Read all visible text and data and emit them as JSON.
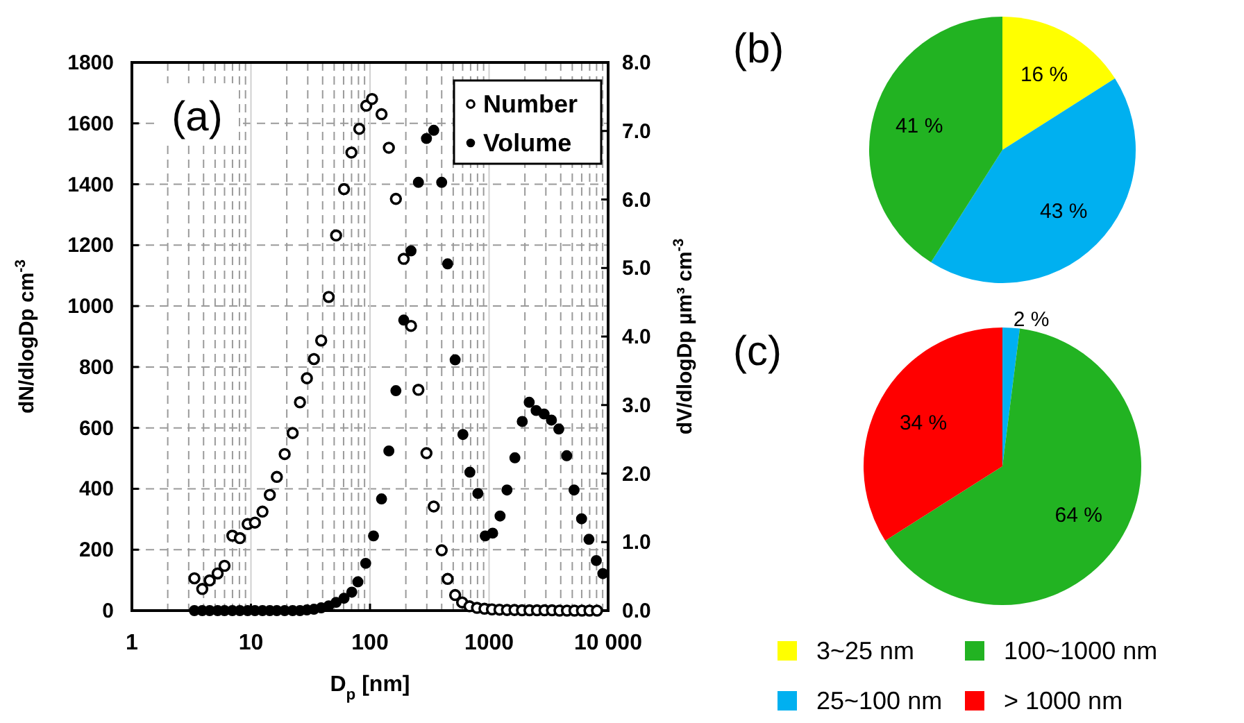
{
  "chart_data": [
    {
      "type": "scatter",
      "title": "(a)",
      "xlabel": "D$_{p}$ [nm]",
      "ylabel": "dN/dlogDp cm$^{-3}$",
      "y2label": "dV/dlogDp µm³ cm$^{-3}$",
      "log": "x",
      "grid": true,
      "legend": "top right",
      "marker": "circle",
      "xlim": [
        1,
        10000
      ],
      "xticks": [
        1,
        {
          "value": 2,
          "label": null
        },
        {
          "value": 3,
          "label": null
        },
        {
          "value": 4,
          "label": null
        },
        {
          "value": 5,
          "label": null
        },
        {
          "value": 6,
          "label": null
        },
        {
          "value": 7,
          "label": null
        },
        {
          "value": 8,
          "label": null
        },
        {
          "value": 9,
          "label": null
        },
        10,
        {
          "value": 20,
          "label": null
        },
        {
          "value": 30,
          "label": null
        },
        {
          "value": 40,
          "label": null
        },
        {
          "value": 50,
          "label": null
        },
        {
          "value": 60,
          "label": null
        },
        {
          "value": 70,
          "label": null
        },
        {
          "value": 80,
          "label": null
        },
        {
          "value": 90,
          "label": null
        },
        100,
        {
          "value": 200,
          "label": null
        },
        {
          "value": 300,
          "label": null
        },
        {
          "value": 400,
          "label": null
        },
        {
          "value": 500,
          "label": null
        },
        {
          "value": 600,
          "label": null
        },
        {
          "value": 700,
          "label": null
        },
        {
          "value": 800,
          "label": null
        },
        {
          "value": 900,
          "label": null
        },
        1000,
        {
          "value": 2000,
          "label": null
        },
        {
          "value": 3000,
          "label": null
        },
        {
          "value": 4000,
          "label": null
        },
        {
          "value": 5000,
          "label": null
        },
        {
          "value": 6000,
          "label": null
        },
        {
          "value": 7000,
          "label": null
        },
        {
          "value": 8000,
          "label": null
        },
        {
          "value": 9000,
          "label": null
        },
        {
          "value": 10000,
          "label": "10 000"
        }
      ],
      "ylim": [
        0,
        1800
      ],
      "yticks": [
        0,
        200,
        400,
        600,
        800,
        1000,
        1200,
        1400,
        1600,
        1800
      ],
      "y2lim": [
        0,
        8
      ],
      "y2ticks": [
        {
          "value": 0,
          "label": "0.0"
        },
        {
          "value": 1,
          "label": "1.0"
        },
        {
          "value": 2,
          "label": "2.0"
        },
        {
          "value": 3,
          "label": "3.0"
        },
        {
          "value": 4,
          "label": "4.0"
        },
        {
          "value": 5,
          "label": "5.0"
        },
        {
          "value": 6,
          "label": "6.0"
        },
        {
          "value": 7,
          "label": "7.0"
        },
        {
          "value": 8,
          "label": "8.0"
        }
      ],
      "series": [
        {
          "name": "Number",
          "color": "#000000",
          "x": [
            3.35,
            3.9,
            4.5,
            5.25,
            6,
            6.98,
            8.07,
            9.38,
            10.8,
            12.5,
            14.4,
            16.5,
            19.2,
            22.4,
            25.8,
            29.5,
            33.8,
            38.9,
            45,
            51.9,
            60.5,
            69.8,
            81.3,
            93,
            104,
            125,
            144,
            165,
            192,
            221,
            255,
            298,
            343,
            400,
            449,
            519,
            594,
            685,
            792,
            915,
            1058,
            1223,
            1414,
            1635,
            1891,
            2185,
            2527,
            2921,
            3377,
            3904,
            4512,
            5217,
            6033,
            6974,
            8066
          ],
          "values": [
            106,
            71,
            99,
            122,
            147,
            246,
            238,
            284,
            289,
            325,
            380,
            439,
            514,
            583,
            684,
            763,
            826,
            887,
            1030,
            1232,
            1384,
            1504,
            1582,
            1658,
            1680,
            1630,
            1520,
            1352,
            1155,
            935,
            725,
            517,
            342,
            198,
            104,
            51,
            27,
            14,
            9,
            6,
            4,
            3,
            2,
            2,
            1,
            1,
            1,
            1,
            1,
            0,
            0,
            0,
            0,
            0,
            0
          ]
        },
        {
          "name": "Volume",
          "color": "#000000",
          "axis": "y2",
          "x": [
            3.35,
            3.9,
            4.5,
            5.25,
            6,
            6.98,
            8.07,
            9.38,
            10.8,
            12.5,
            14.4,
            16.5,
            19.2,
            22.4,
            25.8,
            29.5,
            33.8,
            38.9,
            45,
            51.9,
            60.5,
            70.3,
            79.1,
            92,
            107,
            125,
            144,
            165,
            192,
            221,
            255,
            298,
            343,
            400,
            449,
            519,
            603,
            690,
            805,
            928,
            1072,
            1237,
            1414,
            1648,
            1900,
            2174,
            2486,
            2898,
            3341,
            3853,
            4490,
            5177,
            5986,
            6902,
            7958,
            9031
          ],
          "values": [
            0,
            0,
            0,
            0,
            0,
            0,
            0,
            0,
            0,
            0,
            0,
            0,
            0,
            0,
            0,
            0.01,
            0.02,
            0.04,
            0.07,
            0.12,
            0.18,
            0.27,
            0.42,
            0.69,
            1.09,
            1.63,
            2.33,
            3.21,
            4.24,
            5.25,
            6.25,
            6.89,
            7.01,
            6.25,
            5.06,
            3.66,
            2.57,
            2.02,
            1.71,
            1.09,
            1.13,
            1.38,
            1.76,
            2.23,
            2.76,
            3.04,
            2.92,
            2.87,
            2.78,
            2.65,
            2.26,
            1.76,
            1.34,
            1.04,
            0.73,
            0.54
          ]
        }
      ]
    },
    {
      "type": "pie",
      "title": "(b)",
      "legend": false,
      "categories": [
        null,
        null,
        null,
        null
      ],
      "values": [
        16,
        43,
        41,
        0
      ],
      "value_labels": [
        "16 %",
        "43 %",
        "41 %",
        null
      ],
      "colors": [
        "#ffff00",
        "#00b0f0",
        "#22b322",
        "#ff0000"
      ]
    },
    {
      "type": "pie",
      "title": "(c)",
      "legend": "bottom",
      "categories": [
        "3~25 nm",
        "25~100 nm",
        "100~1000 nm",
        "> 1000 nm"
      ],
      "values": [
        0,
        2,
        64,
        34
      ],
      "value_labels": [
        null,
        "2 %",
        "64 %",
        "34 %"
      ],
      "colors": [
        "#ffff00",
        "#00b0f0",
        "#22b322",
        "#ff0000"
      ]
    }
  ]
}
